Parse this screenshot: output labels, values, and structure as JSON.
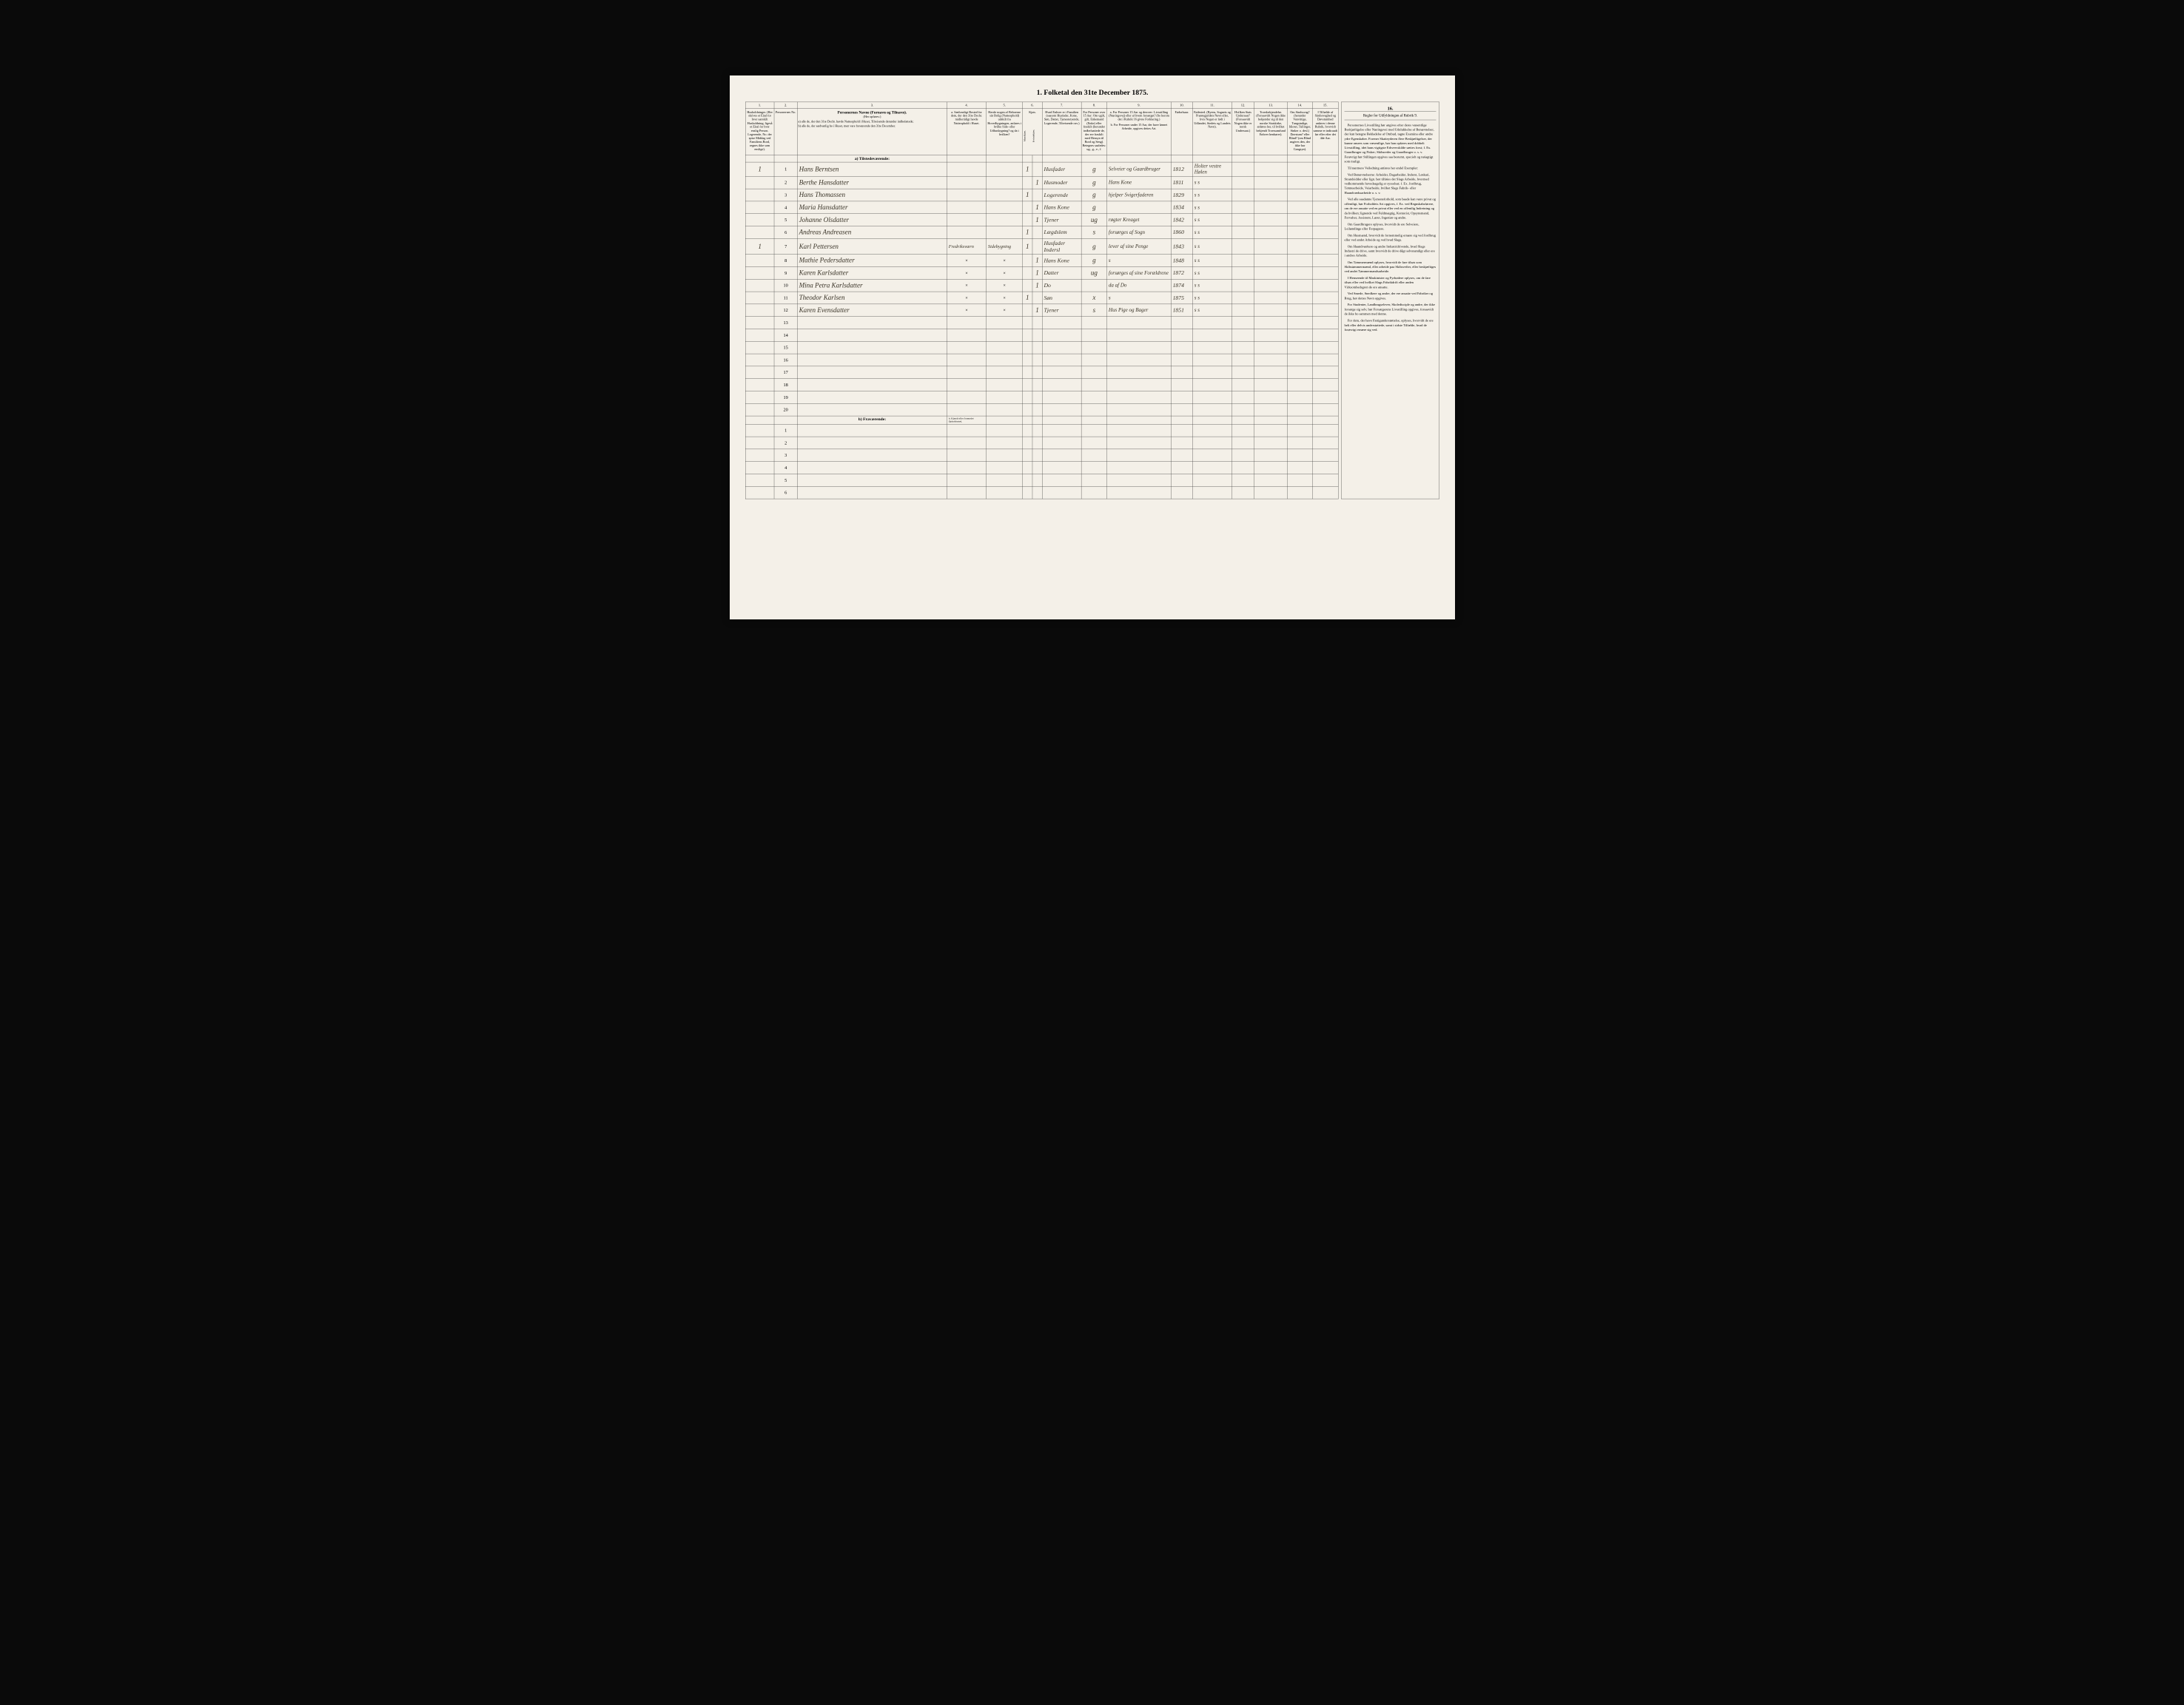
{
  "title": "1. Folketal den 31te December 1875.",
  "columns": {
    "c1": "1.",
    "c2": "2.",
    "c3": "3.",
    "c4": "4.",
    "c5": "5.",
    "c6": "6.",
    "c7": "7.",
    "c8": "8.",
    "c9": "9.",
    "c10": "10.",
    "c11": "11.",
    "c12": "12.",
    "c13": "13.",
    "c14": "14.",
    "c15": "15.",
    "c16": "16."
  },
  "headers": {
    "h1": "Husholdninger. (Her skrives et Eital for hver særskilt Husholdning; ligeså et Eital for hver enslig Person. Logerende, No. der spise Middag ved Familiens Bord, regnes ikke som enslige).",
    "h2": "Personernes No.",
    "h3": "Personernes Navne (Fornavn og Tilnavn).",
    "h3a": "(Her opføres:)",
    "h3b": "a) alle de, der den 31te Decbr. havde Natteophold i Huset, Tilreisende derunder indbefattede;",
    "h3c": "b) alle de, der sædvanlig bo i Huset, men vare fraværende den 31te December.",
    "h4": "a. Sædvanligt Bosted for dem, der den 31te Decbr. midlertidigt havde Natteophold i Huset.",
    "h5": "Havde nogen af Beboerne sin Bolig (Natteophold) udskilt fra Hovedbygningen, anføres i hvilke Side- eller Udhusbygning? og da i hvilken?",
    "h6": "Kjøn.",
    "h6m": "Mandkjøn.",
    "h6k": "Kvindekjøn.",
    "h7": "Hvad Enhver er i Familien (saasom Husfader, Kone, Søn, Datter, Tjenestetyende, Logerende, Tilreisende osv.)",
    "h8": "For Personer over 15 Aar: Om ugift, gift, Enkemand (Enke) eller fraskilt (herunder indbefaattede de, der ere fraskilt med Hensyn til Bord og Seng). Betegnes saaledes: ug., g., e., f.",
    "h9": "a. For Personer 15 Aar og derover: Livsstilling (Næringsvej) eller af hvem forsørget? (Se herom det i Rubrik 16 givne Forklaring.)",
    "h9b": "b. For Personer under 15 Aar, der have lønnet Arbeide, opgives dettes Art.",
    "h10": "Fødselsaar.",
    "h11": "Fødested. (Byens, Sognets og Præstegjeldets Navn eller, hvis Nogen er født i Udlandet, Stedets og Landets Navn).",
    "h12": "Hvilken Stats Undersaat? (Forsaavidt Nogen ikke er norsk Undersaat.)",
    "h13": "Troesbekjendelse. (Forsaavidt Nogen ikke bekjender sig til den norske Statskirke, anføres her, til hvilket bekjendt Troessamfund Enhver henhører).",
    "h14": "Om Sindssvag? (herunder Vanvittige, Tungsindige, Idioter, Tullinger, Sinker o. desl.) Døvstum? eller Blind? (om Blind angives den, der ikke har Gangsyn).",
    "h15": "I Tilfælde af Sindssvaghed og Døvstumhed anføres i denne Rubrik, hvorvidt samme er indtraadt før eller efter det 4de Aar.",
    "h16": "Regler for Udfyldningen af Rubrik 9."
  },
  "section_a": "a) Tilstedeværende:",
  "section_b": "b) Fraværende:",
  "section_b_note": "b. Kjendt eller formodet Opholdssted.",
  "rows": [
    {
      "hh": "1",
      "num": "1",
      "name": "Hans Berntsen",
      "c4": "",
      "c5": "",
      "m": "1",
      "k": "",
      "fam": "Husfader",
      "civ": "g",
      "occ": "Selveier og Gaardbruger",
      "year": "1812",
      "place": "Holter vestre Hølen"
    },
    {
      "hh": "",
      "num": "2",
      "name": "Berthe Hansdatter",
      "c4": "",
      "c5": "",
      "m": "",
      "k": "1",
      "fam": "Husmoder",
      "civ": "g",
      "occ": "Hans Kone",
      "year": "1811",
      "place": "s   s"
    },
    {
      "hh": "",
      "num": "3",
      "name": "Hans Thomassen",
      "c4": "",
      "c5": "",
      "m": "1",
      "k": "",
      "fam": "Logerende",
      "civ": "g",
      "occ": "hjelper Svigerfaderen",
      "year": "1829",
      "place": "s   s"
    },
    {
      "hh": "",
      "num": "4",
      "name": "Maria Hansdatter",
      "c4": "",
      "c5": "",
      "m": "",
      "k": "1",
      "fam": "Hans Kone",
      "civ": "g",
      "occ": "",
      "year": "1834",
      "place": "s   s"
    },
    {
      "hh": "",
      "num": "5",
      "name": "Johanne Olsdatter",
      "c4": "",
      "c5": "",
      "m": "",
      "k": "1",
      "fam": "Tjener",
      "civ": "ug",
      "occ": "røgter Kreaget",
      "year": "1842",
      "place": "s   s"
    },
    {
      "hh": "",
      "num": "6",
      "name": "Andreas Andreasen",
      "c4": "",
      "c5": "",
      "m": "1",
      "k": "",
      "fam": "Lægdslem",
      "civ": "s",
      "occ": "forsørges af Sogn",
      "year": "1860",
      "place": "s   s"
    },
    {
      "hh": "1",
      "num": "7",
      "name": "Karl Pettersen",
      "c4": "Fredriksværn",
      "c5": "Sidebygning",
      "m": "1",
      "k": "",
      "fam": "Husfader Indersl",
      "civ": "g",
      "occ": "lever af sine Penge",
      "year": "1843",
      "place": "s   s"
    },
    {
      "hh": "",
      "num": "8",
      "name": "Mathie Pedersdatter",
      "c4": "x",
      "c5": "x",
      "m": "",
      "k": "1",
      "fam": "Hans Kone",
      "civ": "g",
      "occ": "s",
      "year": "1848",
      "place": "s   s"
    },
    {
      "hh": "",
      "num": "9",
      "name": "Karen Karlsdatter",
      "c4": "x",
      "c5": "x",
      "m": "",
      "k": "1",
      "fam": "Datter",
      "civ": "ug",
      "occ": "forsørges af sine Forældrene",
      "year": "1872",
      "place": "s   s"
    },
    {
      "hh": "",
      "num": "10",
      "name": "Mina Petra Karlsdatter",
      "c4": "x",
      "c5": "x",
      "m": "",
      "k": "1",
      "fam": "Do",
      "civ": "",
      "occ": "da af Do",
      "year": "1874",
      "place": "s   s"
    },
    {
      "hh": "",
      "num": "11",
      "name": "Theodor Karlsen",
      "c4": "x",
      "c5": "x",
      "m": "1",
      "k": "",
      "fam": "Søn",
      "civ": "x",
      "occ": "s",
      "year": "1875",
      "place": "s   s"
    },
    {
      "hh": "",
      "num": "12",
      "name": "Karen Evensdatter",
      "c4": "x",
      "c5": "x",
      "m": "",
      "k": "1",
      "fam": "Tjener",
      "civ": "s",
      "occ": "Hus Pige og Bager",
      "year": "1851",
      "place": "s   s"
    }
  ],
  "empty_rows_a": [
    "13",
    "14",
    "15",
    "16",
    "17",
    "18",
    "19",
    "20"
  ],
  "empty_rows_b": [
    "1",
    "2",
    "3",
    "4",
    "5",
    "6"
  ],
  "instructions": {
    "header": "Regler for Udfyldningen af Rubrik 9.",
    "paras": [
      "Personernes Livsstilling bør angives efter deres væsentlige Beskjæftigelse eller Næringsvei med Udelukkelse af Benævnelser, der kun betegne Bekladelse af Ombud, tagne Examina eller andre ydre Egenskaber. Forener Skatteyderen flere Beskjæftigelser, der kunne ansees som væsentlige, bør han opføres med dobbelt Livsstilling, idet hans vigtigste Erhvervskilde sættes forst; f. Ex. Gaardbruger og Fisker; Skibsreder og Gaardbruger o. s. v. Forøvrigt bør Stillingen opgives saa bestemt, specielt og nøiagtigt som muligt.",
      "Til nærmere Veiledning anføres her endel Exempler:",
      "Ved Benævnelserne: Arbeider, Dagarbeider, Inderst, Løskari, Strandsidder eller lign. bør tilføies det Slags Arbeide, hvormed vedkommende hovedsagelig er sysselsat; f. Ex. Jordbrug, Tømtearbeide, Veiarbeide, hvilket Slags Fabrik- eller Haandværksarbeide o. s. v.",
      "Ved alle saadanne Tjenesteforhold, som baade kan være privat og offentligt, bør Forholdets Art opgives, f. Ex. ved Regnskabsførere, om de ere ansatte ved en privat eller ved en offentlig Indretning og da hvilken; lignende ved Fuldmægtig, Kontorist, Opsynsmand, Forvalter, Assistent, Lærer, Ingeniør og andre.",
      "Om Gaardbrugere oplyses, hvorvidt de ere Selveiere, Leilændinge eller Forpagtere.",
      "Om Husmænd, hvorvidt de fornemmelig ernære sig ved Jordbrug eller ved andet Arbeide og ved hvad Slags.",
      "Om Haandværkere og andre Industridrivende, hvad Slags Industri de drive, samt hvorvidt de drive dågt selvstændigt eller ere i andres Arbeide.",
      "Om Tømmermænd oplyses, hvorvidt de fare tilsøs som Skibstømmermænd, eller arbeide paa Skibsvefter, eller beskjæftiges ved andet Tømmermandsarbeide.",
      "I Henseende til Maskinister og Fyrbødere oplyses, om de fare tilsøs eller ved hvilket Slags Fabrikdrift eller anden Virksomhedsgren de ere ansatte.",
      "Ved Smede, Snedkere og andre, der ere ansatte ved Fabriker og Brug, bør dettes Navn opgives.",
      "For Studenter, Landbrugselever, Skoledisciple og andre, der ikke forsørge sig selv, bør Forsørgerens Livsstilling opgives, forsaavidt de ikke bo sammen med denne.",
      "For dem, der have Fattigunderstøttelse, oplyses, hvorvidt de ere helt eller delvis understøttede, samt i sidste Tilfælde, hvad de forøvrigt ernære sig ved."
    ]
  }
}
